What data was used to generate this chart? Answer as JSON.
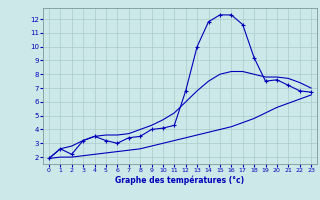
{
  "xlabel": "Graphe des températures (°c)",
  "bg_color": "#cce8e8",
  "grid_color": "#aacccc",
  "line_color": "#0000bb",
  "xlim": [
    -0.5,
    23.5
  ],
  "ylim": [
    1.5,
    12.8
  ],
  "xticks": [
    0,
    1,
    2,
    3,
    4,
    5,
    6,
    7,
    8,
    9,
    10,
    11,
    12,
    13,
    14,
    15,
    16,
    17,
    18,
    19,
    20,
    21,
    22,
    23
  ],
  "yticks": [
    2,
    3,
    4,
    5,
    6,
    7,
    8,
    9,
    10,
    11,
    12
  ],
  "hours": [
    0,
    1,
    2,
    3,
    4,
    5,
    6,
    7,
    8,
    9,
    10,
    11,
    12,
    13,
    14,
    15,
    16,
    17,
    18,
    19,
    20,
    21,
    22,
    23
  ],
  "temp_actual": [
    1.9,
    2.6,
    2.2,
    3.2,
    3.5,
    3.2,
    3.0,
    3.4,
    3.5,
    4.0,
    4.1,
    4.3,
    6.8,
    10.0,
    11.8,
    12.3,
    12.3,
    11.6,
    9.2,
    7.5,
    7.6,
    7.2,
    6.8,
    6.7
  ],
  "temp_min": [
    1.9,
    2.0,
    2.0,
    2.1,
    2.2,
    2.3,
    2.4,
    2.5,
    2.6,
    2.8,
    3.0,
    3.2,
    3.4,
    3.6,
    3.8,
    4.0,
    4.2,
    4.5,
    4.8,
    5.2,
    5.6,
    5.9,
    6.2,
    6.5
  ],
  "temp_max": [
    1.9,
    2.6,
    2.8,
    3.2,
    3.5,
    3.6,
    3.6,
    3.7,
    4.0,
    4.3,
    4.7,
    5.2,
    6.0,
    6.8,
    7.5,
    8.0,
    8.2,
    8.2,
    8.0,
    7.8,
    7.8,
    7.7,
    7.4,
    7.0
  ]
}
